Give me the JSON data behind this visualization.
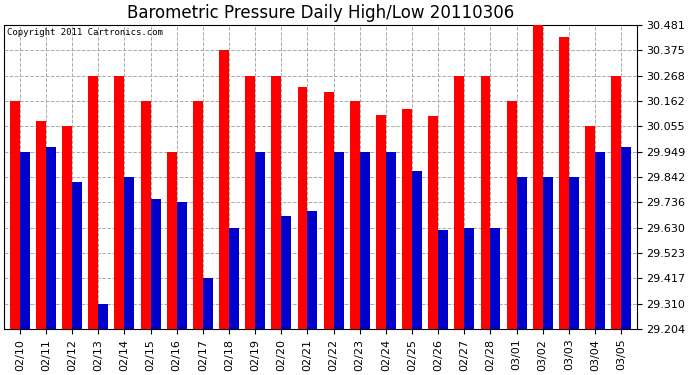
{
  "title": "Barometric Pressure Daily High/Low 20110306",
  "copyright": "Copyright 2011 Cartronics.com",
  "dates": [
    "02/10",
    "02/11",
    "02/12",
    "02/13",
    "02/14",
    "02/15",
    "02/16",
    "02/17",
    "02/18",
    "02/19",
    "02/20",
    "02/21",
    "02/22",
    "02/23",
    "02/24",
    "02/25",
    "02/26",
    "02/27",
    "02/28",
    "03/01",
    "03/02",
    "03/03",
    "03/04",
    "03/05"
  ],
  "highs": [
    30.162,
    30.08,
    30.055,
    30.268,
    30.268,
    30.162,
    29.949,
    30.162,
    30.375,
    30.268,
    30.268,
    30.22,
    30.2,
    30.162,
    30.105,
    30.13,
    30.1,
    30.268,
    30.268,
    30.162,
    30.481,
    30.43,
    30.055,
    30.268
  ],
  "lows": [
    29.949,
    29.97,
    29.82,
    29.31,
    29.842,
    29.75,
    29.736,
    29.417,
    29.63,
    29.949,
    29.68,
    29.7,
    29.949,
    29.949,
    29.949,
    29.87,
    29.62,
    29.63,
    29.63,
    29.842,
    29.842,
    29.842,
    29.949,
    29.97
  ],
  "high_color": "#ff0000",
  "low_color": "#0000cc",
  "bg_color": "#ffffff",
  "plot_bg_color": "#ffffff",
  "grid_color": "#aaaaaa",
  "yticks": [
    29.204,
    29.31,
    29.417,
    29.523,
    29.63,
    29.736,
    29.842,
    29.949,
    30.055,
    30.162,
    30.268,
    30.375,
    30.481
  ],
  "ymin": 29.204,
  "ymax": 30.481,
  "bar_width": 0.38,
  "title_fontsize": 12,
  "tick_fontsize": 8,
  "copyright_fontsize": 6.5
}
